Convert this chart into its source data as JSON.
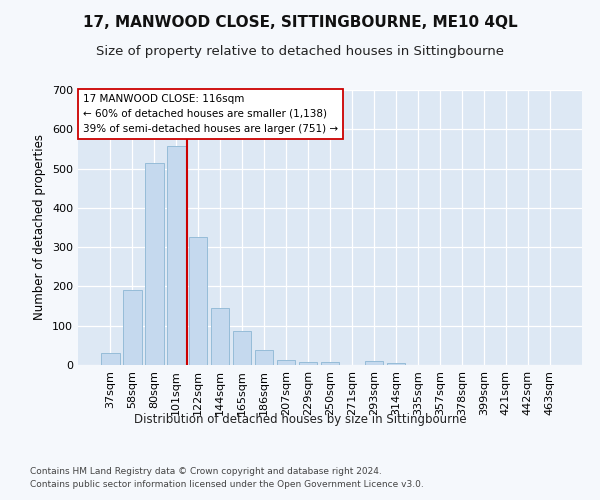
{
  "title": "17, MANWOOD CLOSE, SITTINGBOURNE, ME10 4QL",
  "subtitle": "Size of property relative to detached houses in Sittingbourne",
  "xlabel": "Distribution of detached houses by size in Sittingbourne",
  "ylabel": "Number of detached properties",
  "footnote1": "Contains HM Land Registry data © Crown copyright and database right 2024.",
  "footnote2": "Contains public sector information licensed under the Open Government Licence v3.0.",
  "categories": [
    "37sqm",
    "58sqm",
    "80sqm",
    "101sqm",
    "122sqm",
    "144sqm",
    "165sqm",
    "186sqm",
    "207sqm",
    "229sqm",
    "250sqm",
    "271sqm",
    "293sqm",
    "314sqm",
    "335sqm",
    "357sqm",
    "378sqm",
    "399sqm",
    "421sqm",
    "442sqm",
    "463sqm"
  ],
  "values": [
    30,
    191,
    515,
    558,
    325,
    144,
    86,
    38,
    12,
    8,
    8,
    0,
    10,
    5,
    0,
    0,
    0,
    0,
    0,
    0,
    0
  ],
  "bar_color": "#c5d9ee",
  "bar_edgecolor": "#96bcd8",
  "vline_color": "#cc0000",
  "vline_x": 3.5,
  "annotation_line1": "17 MANWOOD CLOSE: 116sqm",
  "annotation_line2": "← 60% of detached houses are smaller (1,138)",
  "annotation_line3": "39% of semi-detached houses are larger (751) →",
  "ylim": [
    0,
    700
  ],
  "yticks": [
    0,
    100,
    200,
    300,
    400,
    500,
    600,
    700
  ],
  "fig_bg": "#f5f8fc",
  "plot_bg": "#dde8f4",
  "title_fontsize": 11,
  "subtitle_fontsize": 9.5,
  "axis_label_fontsize": 8.5,
  "tick_fontsize": 8,
  "footnote_fontsize": 6.5
}
